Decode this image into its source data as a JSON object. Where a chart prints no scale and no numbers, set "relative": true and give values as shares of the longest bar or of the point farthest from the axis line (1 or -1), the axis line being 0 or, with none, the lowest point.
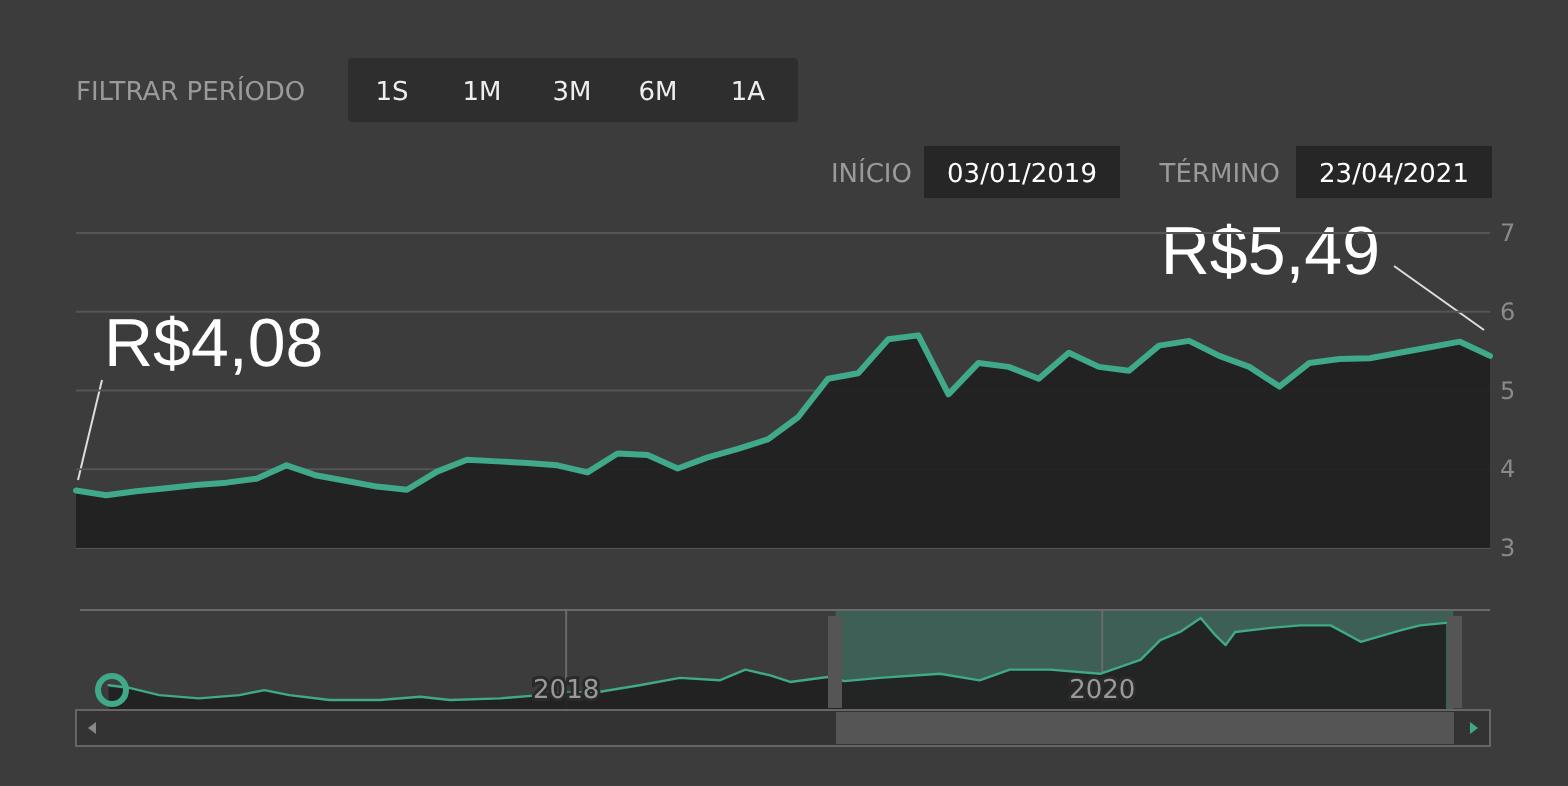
{
  "chart_data": [
    {
      "type": "area",
      "categories": [
        null,
        null,
        null,
        null,
        null,
        null,
        null,
        null,
        null,
        null,
        null,
        null,
        null,
        null,
        null,
        null,
        null,
        null,
        null,
        null,
        null,
        null,
        null,
        null,
        null,
        null,
        null,
        null,
        null,
        null,
        null,
        null,
        null,
        null,
        null,
        null,
        null,
        null,
        null,
        null,
        null,
        null,
        null,
        null,
        null,
        null,
        null,
        null
      ],
      "series": [
        {
          "color": "#3fa98a",
          "values": [
            3.73,
            3.67,
            3.72,
            3.76,
            3.8,
            3.83,
            3.88,
            4.05,
            3.92,
            3.85,
            3.78,
            3.74,
            3.97,
            4.12,
            4.1,
            4.08,
            4.05,
            3.96,
            4.2,
            4.18,
            4.01,
            4.15,
            4.26,
            4.38,
            4.66,
            5.15,
            5.22,
            5.65,
            5.7,
            4.95,
            5.35,
            5.3,
            5.15,
            5.48,
            5.3,
            5.25,
            5.57,
            5.63,
            5.44,
            5.3,
            5.05,
            5.35,
            5.4,
            5.41,
            5.48,
            5.55,
            5.62,
            5.44
          ]
        }
      ],
      "ylim": [
        3,
        7
      ],
      "yticks": [
        3,
        4,
        5,
        6,
        7
      ],
      "grid": "y",
      "tick_labels": "y",
      "annotations": [
        "FILTRAR PERÍODO",
        "1S",
        "1M",
        "3M",
        "6M",
        "1A",
        "INÍCIO",
        "03/01/2019",
        "TÉRMINO",
        "23/04/2021",
        "R$4,08",
        "R$5,49"
      ]
    },
    {
      "type": "area",
      "relative": true,
      "x": [
        "2016-04-18",
        "2016-05-15",
        "2016-06-26",
        "2016-08-19",
        "2016-10-13",
        "2016-11-16",
        "2016-12-20",
        "2017-02-13",
        "2017-04-22",
        "2017-06-16",
        "2017-07-27",
        "2017-10-03",
        "2017-11-26",
        "2018-01-01",
        "2018-02-16",
        "2018-04-11",
        "2018-06-05",
        "2018-07-29",
        "2018-09-02",
        "2018-10-06",
        "2018-11-02",
        "2018-12-23",
        "2019-01-15",
        "2019-03-04",
        "2019-05-25",
        "2019-07-18",
        "2019-08-28",
        "2019-10-22",
        "2019-12-29",
        "2020-02-22",
        "2020-03-20",
        "2020-04-16",
        "2020-05-14",
        "2020-06-03",
        "2020-06-17",
        "2020-06-30",
        "2020-08-17",
        "2020-09-27",
        "2020-11-07",
        "2020-12-18",
        "2021-02-10",
        "2021-03-09",
        "2021-04-13"
      ],
      "series": [
        {
          "color": "#3fa98a",
          "values": [
            0.18,
            0.15,
            0.06,
            0.02,
            0.06,
            0.12,
            0.06,
            0,
            0,
            0.04,
            0,
            0.02,
            0.06,
            0.09,
            0.1,
            0.18,
            0.27,
            0.24,
            0.37,
            0.3,
            0.22,
            0.28,
            0.23,
            0.27,
            0.32,
            0.24,
            0.37,
            0.37,
            0.32,
            0.49,
            0.73,
            0.83,
            1,
            0.79,
            0.67,
            0.83,
            0.88,
            0.91,
            0.91,
            0.71,
            0.85,
            0.91,
            0.94
          ]
        }
      ],
      "xlim": [
        "2016-03-10",
        "2021-06-12"
      ],
      "xticks": [
        {
          "value": "2018-01-01",
          "label": "2018"
        },
        {
          "value": "2020-01-01",
          "label": "2020"
        }
      ],
      "grid": "x",
      "tick_labels": "x",
      "bands": [
        {
          "axis": "x",
          "from": "2019-01-03",
          "to": "2021-04-23",
          "color": "#3d6b5d"
        }
      ]
    }
  ]
}
